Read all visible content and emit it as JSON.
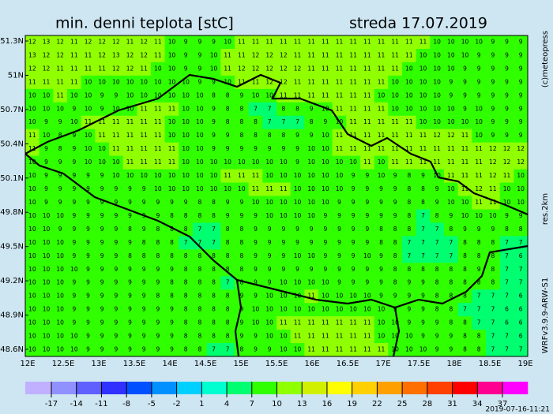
{
  "title": "min. denni teplota [stC]",
  "date": "streda 17.07.2019",
  "lat_labels": [
    "51.3N",
    "51N",
    "50.7N",
    "50.4N",
    "50.1N",
    "49.8N",
    "49.5N",
    "49.2N",
    "48.9N",
    "48.6N"
  ],
  "lon_labels": [
    "12E",
    "12.5E",
    "13E",
    "13.5E",
    "14E",
    "14.5E",
    "15E",
    "15.5E",
    "16E",
    "16.5E",
    "17E",
    "17.5E",
    "18E",
    "18.5E",
    "19E"
  ],
  "colorbar": {
    "ticks": [
      -17,
      -14,
      -11,
      -8,
      -5,
      -2,
      1,
      4,
      7,
      10,
      13,
      16,
      19,
      22,
      25,
      28,
      31,
      34,
      37
    ],
    "colors": [
      "#c0b0ff",
      "#9090ff",
      "#6060ff",
      "#3030ff",
      "#0050ff",
      "#0090ff",
      "#00d0ff",
      "#00ffd0",
      "#00ff70",
      "#30ff00",
      "#90ff00",
      "#d0f000",
      "#ffff00",
      "#ffd000",
      "#ffa000",
      "#ff7000",
      "#ff4000",
      "#ff0000",
      "#ff0090",
      "#ff00ff"
    ]
  },
  "grid": {
    "rows": [
      [
        12,
        13,
        12,
        11,
        12,
        12,
        12,
        11,
        12,
        11,
        10,
        9,
        9,
        9,
        10,
        11,
        11,
        11,
        11,
        11,
        11,
        11,
        11,
        11,
        11,
        11,
        11,
        11,
        11,
        10,
        10,
        10,
        10,
        9,
        9,
        9
      ],
      [
        13,
        12,
        12,
        11,
        11,
        12,
        13,
        12,
        12,
        11,
        10,
        9,
        9,
        10,
        11,
        11,
        12,
        12,
        12,
        11,
        11,
        11,
        11,
        11,
        11,
        11,
        11,
        11,
        10,
        10,
        10,
        10,
        9,
        9,
        9,
        9
      ],
      [
        12,
        12,
        11,
        11,
        11,
        11,
        12,
        12,
        11,
        10,
        10,
        9,
        9,
        10,
        11,
        12,
        12,
        12,
        12,
        12,
        11,
        11,
        11,
        11,
        11,
        11,
        11,
        10,
        10,
        10,
        10,
        9,
        9,
        9,
        9,
        9
      ],
      [
        11,
        11,
        11,
        11,
        10,
        10,
        10,
        10,
        10,
        10,
        10,
        10,
        9,
        9,
        10,
        11,
        11,
        12,
        12,
        11,
        11,
        11,
        11,
        11,
        11,
        11,
        10,
        10,
        10,
        10,
        9,
        9,
        9,
        9,
        9,
        9
      ],
      [
        10,
        10,
        11,
        10,
        10,
        9,
        9,
        10,
        10,
        10,
        10,
        10,
        10,
        8,
        8,
        9,
        10,
        10,
        11,
        11,
        11,
        11,
        11,
        11,
        11,
        10,
        10,
        10,
        10,
        10,
        9,
        9,
        9,
        9,
        9,
        9
      ],
      [
        10,
        10,
        10,
        9,
        10,
        9,
        10,
        10,
        11,
        11,
        11,
        10,
        10,
        9,
        8,
        8,
        7,
        7,
        8,
        8,
        9,
        10,
        11,
        11,
        11,
        11,
        10,
        10,
        10,
        10,
        10,
        9,
        10,
        9,
        9,
        9
      ],
      [
        10,
        9,
        9,
        10,
        11,
        11,
        11,
        11,
        11,
        11,
        10,
        10,
        10,
        9,
        8,
        8,
        8,
        7,
        7,
        7,
        8,
        9,
        10,
        11,
        11,
        11,
        11,
        11,
        10,
        10,
        10,
        10,
        10,
        9,
        9,
        9
      ],
      [
        11,
        10,
        8,
        9,
        10,
        11,
        11,
        11,
        11,
        11,
        10,
        10,
        10,
        9,
        9,
        8,
        8,
        8,
        8,
        9,
        9,
        10,
        11,
        11,
        11,
        11,
        11,
        11,
        11,
        12,
        12,
        11,
        10,
        9,
        9,
        9
      ],
      [
        11,
        9,
        8,
        9,
        10,
        10,
        11,
        11,
        11,
        11,
        11,
        10,
        10,
        9,
        9,
        9,
        9,
        9,
        9,
        9,
        10,
        10,
        11,
        11,
        11,
        11,
        11,
        11,
        11,
        11,
        11,
        11,
        11,
        12,
        12,
        12
      ],
      [
        10,
        9,
        9,
        9,
        10,
        10,
        10,
        11,
        11,
        11,
        11,
        10,
        10,
        10,
        10,
        10,
        10,
        10,
        10,
        9,
        10,
        10,
        10,
        10,
        11,
        10,
        11,
        11,
        11,
        11,
        11,
        11,
        11,
        12,
        12,
        12
      ],
      [
        10,
        9,
        9,
        9,
        9,
        9,
        10,
        10,
        10,
        10,
        10,
        10,
        10,
        10,
        11,
        11,
        11,
        10,
        10,
        10,
        10,
        10,
        10,
        9,
        9,
        10,
        9,
        8,
        9,
        10,
        11,
        11,
        11,
        12,
        11,
        10
      ],
      [
        10,
        9,
        9,
        9,
        9,
        9,
        9,
        9,
        9,
        10,
        10,
        10,
        10,
        10,
        10,
        10,
        11,
        11,
        11,
        10,
        10,
        10,
        10,
        9,
        9,
        9,
        9,
        8,
        8,
        9,
        10,
        11,
        12,
        11,
        10,
        10
      ],
      [
        10,
        9,
        9,
        9,
        9,
        9,
        9,
        9,
        9,
        9,
        9,
        9,
        8,
        8,
        9,
        9,
        10,
        10,
        10,
        10,
        10,
        10,
        9,
        9,
        9,
        9,
        9,
        8,
        8,
        9,
        10,
        10,
        11,
        11,
        10,
        10
      ],
      [
        10,
        10,
        10,
        9,
        9,
        9,
        9,
        9,
        9,
        9,
        8,
        8,
        8,
        8,
        9,
        9,
        9,
        10,
        10,
        10,
        10,
        9,
        9,
        9,
        9,
        9,
        9,
        8,
        7,
        8,
        9,
        10,
        10,
        10,
        9,
        9
      ],
      [
        10,
        10,
        9,
        9,
        9,
        9,
        9,
        8,
        9,
        8,
        8,
        8,
        7,
        7,
        8,
        8,
        9,
        9,
        9,
        9,
        9,
        9,
        9,
        9,
        9,
        8,
        8,
        8,
        7,
        7,
        8,
        9,
        9,
        9,
        8,
        8
      ],
      [
        10,
        10,
        10,
        9,
        9,
        9,
        9,
        9,
        8,
        8,
        8,
        7,
        7,
        7,
        8,
        8,
        9,
        9,
        9,
        9,
        9,
        9,
        9,
        9,
        9,
        8,
        8,
        7,
        7,
        7,
        7,
        8,
        8,
        8,
        7,
        7
      ],
      [
        10,
        10,
        10,
        9,
        9,
        9,
        9,
        8,
        8,
        8,
        8,
        8,
        8,
        8,
        8,
        8,
        9,
        9,
        9,
        10,
        10,
        9,
        9,
        9,
        10,
        9,
        8,
        7,
        7,
        7,
        7,
        8,
        8,
        8,
        7,
        6
      ],
      [
        10,
        10,
        10,
        10,
        9,
        9,
        9,
        9,
        9,
        9,
        9,
        8,
        8,
        8,
        8,
        8,
        9,
        9,
        9,
        9,
        9,
        9,
        9,
        9,
        9,
        9,
        8,
        8,
        8,
        8,
        8,
        8,
        9,
        8,
        7,
        7
      ],
      [
        10,
        10,
        10,
        9,
        9,
        9,
        9,
        9,
        9,
        9,
        8,
        8,
        8,
        8,
        7,
        8,
        9,
        9,
        10,
        10,
        10,
        10,
        9,
        9,
        9,
        9,
        8,
        9,
        9,
        8,
        8,
        8,
        8,
        8,
        7,
        7
      ],
      [
        10,
        10,
        10,
        9,
        9,
        9,
        9,
        9,
        9,
        8,
        8,
        8,
        8,
        8,
        8,
        9,
        9,
        10,
        10,
        10,
        11,
        10,
        10,
        10,
        10,
        9,
        9,
        9,
        9,
        8,
        8,
        8,
        7,
        7,
        7,
        6
      ],
      [
        10,
        10,
        10,
        9,
        9,
        9,
        9,
        9,
        9,
        9,
        9,
        8,
        8,
        8,
        8,
        9,
        10,
        10,
        10,
        10,
        10,
        10,
        10,
        10,
        10,
        10,
        9,
        9,
        9,
        8,
        8,
        7,
        7,
        7,
        6,
        6
      ],
      [
        10,
        10,
        10,
        9,
        9,
        9,
        9,
        9,
        9,
        9,
        9,
        8,
        8,
        8,
        8,
        9,
        10,
        10,
        11,
        11,
        11,
        11,
        11,
        11,
        11,
        10,
        10,
        9,
        9,
        9,
        8,
        8,
        7,
        7,
        6,
        6
      ],
      [
        10,
        10,
        10,
        10,
        9,
        9,
        9,
        9,
        9,
        9,
        9,
        8,
        8,
        8,
        8,
        9,
        9,
        10,
        10,
        11,
        11,
        11,
        11,
        11,
        11,
        10,
        10,
        10,
        9,
        9,
        9,
        8,
        8,
        7,
        7,
        6
      ],
      [
        10,
        10,
        10,
        10,
        9,
        9,
        9,
        9,
        9,
        9,
        9,
        8,
        8,
        7,
        7,
        8,
        9,
        9,
        10,
        10,
        11,
        11,
        11,
        11,
        11,
        11,
        10,
        10,
        10,
        9,
        9,
        8,
        8,
        7,
        7,
        7
      ]
    ]
  },
  "credits": {
    "copyright": "(c)meteopress",
    "resolution": "res.2km",
    "model": "WRFv3.9.9-ARW-S1",
    "stamp": "2019-07-16-11:21"
  }
}
